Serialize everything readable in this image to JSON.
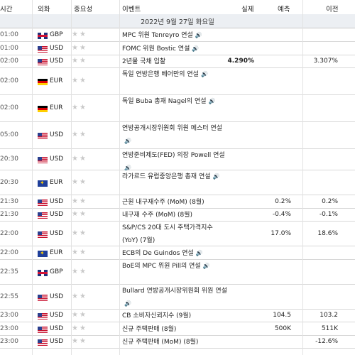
{
  "header": {
    "time": "시간",
    "currency": "외화",
    "importance": "중요성",
    "event": "이벤트",
    "actual": "실제",
    "forecast": "예측",
    "previous": "이전"
  },
  "date": "2022년 9월 27일 화요일",
  "colors": {
    "star": "#c9c9c9",
    "date_band": "#eceff3",
    "row_border": "#d8d8d8"
  },
  "rows": [
    {
      "time": "01:00",
      "currency": "GBP",
      "flag": "gb",
      "stars": "★★",
      "event": "MPC 위원 Tenreyro 연설",
      "speech": true,
      "actual": "",
      "forecast": "",
      "previous": ""
    },
    {
      "time": "01:00",
      "currency": "USD",
      "flag": "us",
      "stars": "★★",
      "event": "FOMC 위원 Bostic 연설",
      "speech": true,
      "actual": "",
      "forecast": "",
      "previous": ""
    },
    {
      "time": "02:00",
      "currency": "USD",
      "flag": "us",
      "stars": "★★",
      "event": "2년물 국채 입찰",
      "speech": false,
      "actual": "4.290%",
      "forecast": "",
      "previous": "3.307%"
    },
    {
      "time": "02:00",
      "currency": "EUR",
      "flag": "de",
      "stars": "★★",
      "event": "독일 연방은행 베어만의 연설",
      "speech": true,
      "actual": "",
      "forecast": "",
      "previous": ""
    },
    {
      "time": "02:00",
      "currency": "EUR",
      "flag": "de",
      "stars": "★★",
      "event": "독일 Buba 총재 Nagel의 연설",
      "speech": true,
      "actual": "",
      "forecast": "",
      "previous": ""
    },
    {
      "time": "05:00",
      "currency": "USD",
      "flag": "us",
      "stars": "★★",
      "event": "연방공개시장위원회 위원 메스터 연설",
      "speech": true,
      "actual": "",
      "forecast": "",
      "previous": ""
    },
    {
      "time": "20:30",
      "currency": "USD",
      "flag": "us",
      "stars": "★★",
      "event": "연방준비제도(FED) 의장 Powell 연설",
      "speech": true,
      "actual": "",
      "forecast": "",
      "previous": ""
    },
    {
      "time": "20:30",
      "currency": "EUR",
      "flag": "eu",
      "stars": "★★",
      "event": "라가르드 유럽중앙은행 총재 연설",
      "speech": true,
      "actual": "",
      "forecast": "",
      "previous": ""
    },
    {
      "time": "21:30",
      "currency": "USD",
      "flag": "us",
      "stars": "★★",
      "event": "근원 내구재수주 (MoM) (8월)",
      "speech": false,
      "actual": "",
      "forecast": "0.2%",
      "previous": "0.2%"
    },
    {
      "time": "21:30",
      "currency": "USD",
      "flag": "us",
      "stars": "★★",
      "event": "내구재 수주 (MoM) (8월)",
      "speech": false,
      "actual": "",
      "forecast": "-0.4%",
      "previous": "-0.1%"
    },
    {
      "time": "22:00",
      "currency": "USD",
      "flag": "us",
      "stars": "★★",
      "event": "S&P/CS 20대 도시 주택가격지수 (YoY) (7월)",
      "speech": false,
      "actual": "",
      "forecast": "17.0%",
      "previous": "18.6%"
    },
    {
      "time": "22:00",
      "currency": "EUR",
      "flag": "eu",
      "stars": "★★",
      "event": "ECB의 De Guindos 연설",
      "speech": true,
      "actual": "",
      "forecast": "",
      "previous": ""
    },
    {
      "time": "22:35",
      "currency": "GBP",
      "flag": "gb",
      "stars": "★★",
      "event": "BoE의 MPC 위원 Pill의 연설",
      "speech": true,
      "actual": "",
      "forecast": "",
      "previous": ""
    },
    {
      "time": "22:55",
      "currency": "USD",
      "flag": "us",
      "stars": "★★",
      "event": "Bullard 연방공개시장위원회 위원 연설",
      "speech": true,
      "actual": "",
      "forecast": "",
      "previous": ""
    },
    {
      "time": "23:00",
      "currency": "USD",
      "flag": "us",
      "stars": "★★",
      "event": "CB 소비자신뢰지수 (9월)",
      "speech": false,
      "actual": "",
      "forecast": "104.5",
      "previous": "103.2"
    },
    {
      "time": "23:00",
      "currency": "USD",
      "flag": "us",
      "stars": "★★",
      "event": "신규 주택판매 (8월)",
      "speech": false,
      "actual": "",
      "forecast": "500K",
      "previous": "511K"
    },
    {
      "time": "23:00",
      "currency": "USD",
      "flag": "us",
      "stars": "★★",
      "event": "신규 주택판매 (MoM) (8월)",
      "speech": false,
      "actual": "",
      "forecast": "",
      "previous": "-12.6%"
    }
  ]
}
